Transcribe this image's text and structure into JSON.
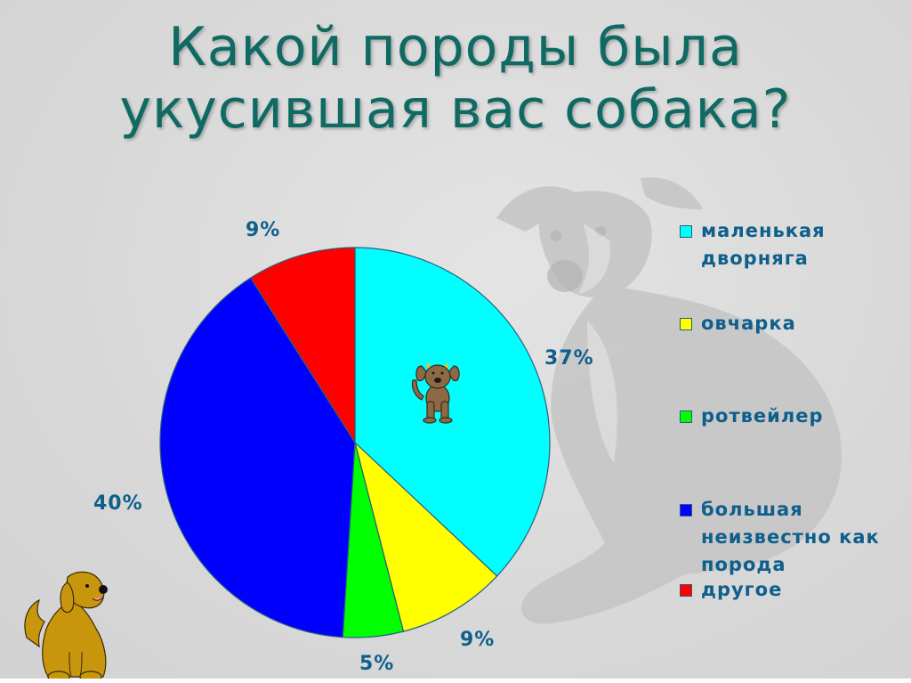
{
  "slide": {
    "title_lines": [
      "Какой породы была",
      "укусившая вас собака?"
    ],
    "background_color": "#d9d9d9",
    "title_color": "#0e6a63",
    "label_color": "#0f5f8c"
  },
  "chart_data": {
    "type": "pie",
    "title": "Какой породы была укусившая вас собака?",
    "categories": [
      "маленькая дворняга",
      "овчарка",
      "ротвейлер",
      "большая неизвестно как порода",
      "другое"
    ],
    "values": [
      37,
      9,
      5,
      40,
      9
    ],
    "unit": "%",
    "colors": [
      "#00ffff",
      "#ffff00",
      "#00ff00",
      "#0000ff",
      "#ff0000"
    ],
    "start_angle_deg": 0,
    "direction": "clockwise",
    "legend_position": "right",
    "data_labels": [
      "37%",
      "9%",
      "5%",
      "40%",
      "9%"
    ]
  },
  "labels": {
    "small_mongrel": "37%",
    "shepherd": "9%",
    "rottweiler": "5%",
    "big_unknown": "40%",
    "other": "9%"
  },
  "legend": {
    "items": [
      {
        "label": "маленькая\nдворняга",
        "color": "#00ffff"
      },
      {
        "label": "овчарка",
        "color": "#ffff00"
      },
      {
        "label": "ротвейлер",
        "color": "#00ff00"
      },
      {
        "label": "большая\nнеизвестно как\nпорода",
        "color": "#0000ff"
      },
      {
        "label": "другое",
        "color": "#ff0000"
      }
    ]
  },
  "icons": {
    "background_photo": "greyhound-photo",
    "chart_decoration": "cartoon-puppy-icon",
    "corner_decoration": "cartoon-golden-dog-icon"
  }
}
